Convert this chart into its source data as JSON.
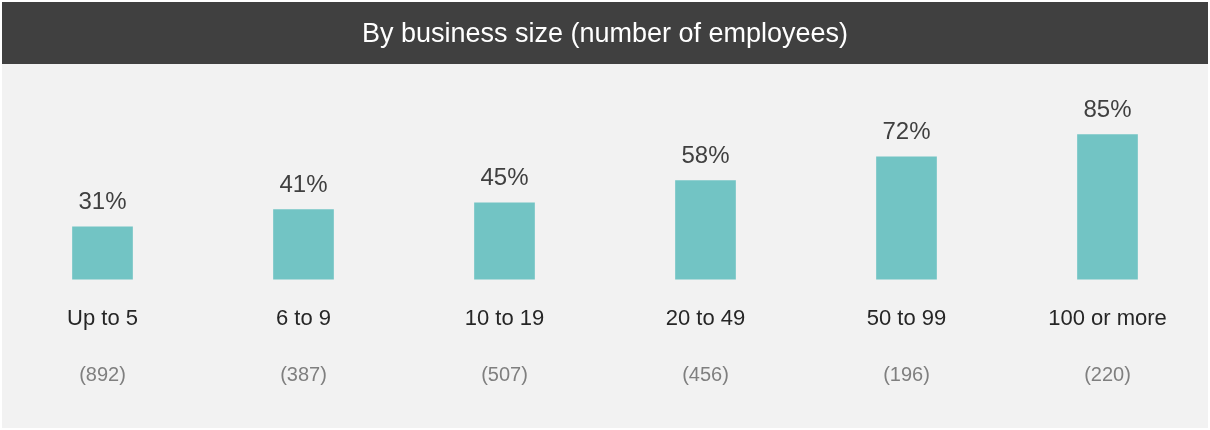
{
  "chart_data": {
    "type": "bar",
    "title": "By business size (number of employees)",
    "categories": [
      "Up to 5",
      "6 to 9",
      "10 to 19",
      "20 to 49",
      "50 to 99",
      "100 or more"
    ],
    "values": [
      31,
      41,
      45,
      58,
      72,
      85
    ],
    "value_labels": [
      "31%",
      "41%",
      "45%",
      "58%",
      "72%",
      "85%"
    ],
    "color": "#72c4c4",
    "annotations": [
      "(892)",
      "(387)",
      "(507)",
      "(456)",
      "(196)",
      "(220)"
    ],
    "grid": false,
    "legend": false
  }
}
